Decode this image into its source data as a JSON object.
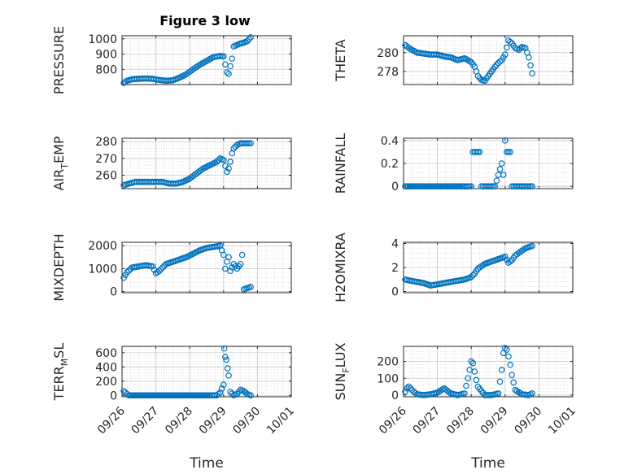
{
  "figure": {
    "title": "Figure 3 low"
  },
  "colors": {
    "marker": "#0072BD",
    "axis": "#262626",
    "grid": "#9a9a9a"
  },
  "chart_data": [
    {
      "type": "scatter",
      "id": "pressure",
      "ylabel": "PRESSURE",
      "ylabel_sub": "",
      "ylim": [
        700,
        1020
      ],
      "yticks": [
        800,
        900,
        1000
      ],
      "xlim": [
        0,
        5
      ],
      "xticks": [],
      "xlabel": "",
      "title": "Figure 3 low",
      "x": [
        0.05,
        0.15,
        0.3,
        0.5,
        0.7,
        0.9,
        1.1,
        1.3,
        1.5,
        1.7,
        1.9,
        2.1,
        2.3,
        2.5,
        2.7,
        2.9,
        3.0,
        3.1,
        3.15,
        3.2,
        3.25,
        3.3,
        3.4,
        3.5,
        3.6,
        3.7,
        3.8
      ],
      "y": [
        710,
        725,
        735,
        738,
        740,
        738,
        730,
        725,
        728,
        745,
        768,
        800,
        830,
        855,
        880,
        888,
        885,
        780,
        770,
        820,
        870,
        950,
        960,
        970,
        975,
        985,
        1010
      ]
    },
    {
      "type": "scatter",
      "id": "theta",
      "ylabel": "THETA",
      "ylabel_sub": "",
      "ylim": [
        276.6,
        281.8
      ],
      "yticks": [
        278,
        280
      ],
      "xlim": [
        0,
        5
      ],
      "xticks": [],
      "xlabel": "",
      "x": [
        0.05,
        0.2,
        0.4,
        0.6,
        0.8,
        1.0,
        1.2,
        1.4,
        1.6,
        1.8,
        2.0,
        2.1,
        2.2,
        2.3,
        2.4,
        2.5,
        2.6,
        2.7,
        2.8,
        2.9,
        3.0,
        3.1,
        3.2,
        3.3,
        3.4,
        3.5,
        3.6,
        3.7,
        3.8
      ],
      "y": [
        280.8,
        280.4,
        280.0,
        279.9,
        279.8,
        279.8,
        279.6,
        279.5,
        279.2,
        279.4,
        279.0,
        278.5,
        277.5,
        277.1,
        277.0,
        277.5,
        278.0,
        278.5,
        278.9,
        279.2,
        279.8,
        281.3,
        281.0,
        280.5,
        280.3,
        280.6,
        280.5,
        279.5,
        277.8
      ]
    },
    {
      "type": "scatter",
      "id": "air_temp",
      "ylabel": "AIR",
      "ylabel_sub": "T",
      "ylabel_tail": "EMP",
      "ylim": [
        252,
        282
      ],
      "yticks": [
        260,
        270,
        280
      ],
      "xlim": [
        0,
        5
      ],
      "xticks": [],
      "xlabel": "",
      "x": [
        0.05,
        0.2,
        0.4,
        0.6,
        0.8,
        1.0,
        1.2,
        1.4,
        1.6,
        1.8,
        2.0,
        2.2,
        2.4,
        2.6,
        2.8,
        2.9,
        3.0,
        3.1,
        3.15,
        3.2,
        3.25,
        3.3,
        3.4,
        3.5,
        3.6,
        3.7,
        3.8
      ],
      "y": [
        254,
        255,
        256,
        256,
        256,
        256,
        256,
        255,
        255,
        256,
        258,
        261,
        264,
        266,
        268,
        270,
        269,
        262,
        264,
        268,
        273,
        276,
        278,
        279,
        279,
        279,
        279
      ]
    },
    {
      "type": "scatter",
      "id": "rainfall",
      "ylabel": "RAINFALL",
      "ylabel_sub": "",
      "ylim": [
        -0.02,
        0.42
      ],
      "yticks": [
        0,
        0.2,
        0.4
      ],
      "xlim": [
        0,
        5
      ],
      "xticks": [],
      "xlabel": "",
      "x": [
        0.05,
        0.3,
        0.6,
        0.9,
        1.2,
        1.5,
        1.8,
        2.0,
        2.05,
        2.1,
        2.2,
        2.25,
        2.3,
        2.5,
        2.7,
        2.9,
        2.95,
        3.0,
        3.05,
        3.1,
        3.15,
        3.2,
        3.3,
        3.5,
        3.7,
        3.8
      ],
      "y": [
        0,
        0,
        0,
        0,
        0,
        0,
        0,
        0,
        0.3,
        0.3,
        0.3,
        0.3,
        0,
        0,
        0,
        0.2,
        0.1,
        0.4,
        0.3,
        0.3,
        0.3,
        0,
        0,
        0,
        0,
        0
      ]
    },
    {
      "type": "scatter",
      "id": "mixdepth",
      "ylabel": "MIXDEPTH",
      "ylabel_sub": "",
      "ylim": [
        -50,
        2150
      ],
      "yticks": [
        0,
        1000,
        2000
      ],
      "xlim": [
        0,
        5
      ],
      "xticks": [],
      "xlabel": "",
      "x": [
        0.05,
        0.15,
        0.3,
        0.5,
        0.7,
        0.9,
        1.0,
        1.1,
        1.3,
        1.5,
        1.7,
        1.9,
        2.1,
        2.3,
        2.5,
        2.7,
        2.9,
        3.0,
        3.05,
        3.1,
        3.15,
        3.2,
        3.3,
        3.4,
        3.5,
        3.55,
        3.6,
        3.7,
        3.8
      ],
      "y": [
        600,
        850,
        1050,
        1100,
        1150,
        1100,
        800,
        900,
        1200,
        1300,
        1400,
        1500,
        1650,
        1800,
        1900,
        1950,
        2000,
        1600,
        1000,
        1300,
        1500,
        900,
        1200,
        1000,
        1200,
        1600,
        100,
        150,
        200
      ]
    },
    {
      "type": "scatter",
      "id": "h2omixra",
      "ylabel": "H2OMIXRA",
      "ylabel_sub": "",
      "ylim": [
        -0.1,
        4.1
      ],
      "yticks": [
        0,
        2,
        4
      ],
      "xlim": [
        0,
        5
      ],
      "xticks": [],
      "xlabel": "",
      "x": [
        0.05,
        0.2,
        0.4,
        0.6,
        0.8,
        1.0,
        1.2,
        1.4,
        1.6,
        1.8,
        2.0,
        2.1,
        2.2,
        2.3,
        2.4,
        2.5,
        2.6,
        2.7,
        2.8,
        2.9,
        3.0,
        3.1,
        3.2,
        3.3,
        3.4,
        3.5,
        3.6,
        3.7,
        3.8
      ],
      "y": [
        1.0,
        0.9,
        0.8,
        0.7,
        0.5,
        0.6,
        0.7,
        0.8,
        0.9,
        1.0,
        1.2,
        1.5,
        1.9,
        2.1,
        2.3,
        2.4,
        2.5,
        2.6,
        2.7,
        2.8,
        2.9,
        2.4,
        2.6,
        3.0,
        3.2,
        3.4,
        3.6,
        3.7,
        3.8
      ]
    },
    {
      "type": "scatter",
      "id": "terr_msl",
      "ylabel": "TERR",
      "ylabel_sub": "M",
      "ylabel_tail": "SL",
      "ylim": [
        -20,
        690
      ],
      "yticks": [
        0,
        200,
        400,
        600
      ],
      "xlim": [
        0,
        5
      ],
      "xticks": [
        "09/26",
        "09/27",
        "09/28",
        "09/29",
        "09/30",
        "10/01"
      ],
      "xlabel": "Time",
      "x": [
        0.05,
        0.2,
        0.5,
        0.8,
        1.1,
        1.4,
        1.7,
        2.0,
        2.3,
        2.6,
        2.8,
        2.9,
        3.0,
        3.02,
        3.05,
        3.08,
        3.12,
        3.15,
        3.2,
        3.3,
        3.4,
        3.5,
        3.6,
        3.7,
        3.8
      ],
      "y": [
        60,
        0,
        0,
        0,
        0,
        0,
        0,
        0,
        0,
        0,
        0,
        40,
        150,
        660,
        540,
        500,
        380,
        280,
        50,
        0,
        20,
        80,
        60,
        20,
        0
      ]
    },
    {
      "type": "scatter",
      "id": "sunflux",
      "ylabel": "SUN",
      "ylabel_sub": "F",
      "ylabel_tail": "LUX",
      "ylim": [
        -10,
        290
      ],
      "yticks": [
        0,
        100,
        200
      ],
      "xlim": [
        0,
        5
      ],
      "xticks": [
        "09/26",
        "09/27",
        "09/28",
        "09/29",
        "09/30",
        "10/01"
      ],
      "xlabel": "Time",
      "x": [
        0.05,
        0.1,
        0.15,
        0.2,
        0.3,
        0.4,
        0.6,
        0.8,
        1.0,
        1.2,
        1.4,
        1.6,
        1.8,
        1.9,
        1.95,
        2.0,
        2.05,
        2.1,
        2.15,
        2.2,
        2.4,
        2.6,
        2.8,
        2.85,
        2.9,
        2.95,
        3.0,
        3.05,
        3.1,
        3.15,
        3.2,
        3.3,
        3.5,
        3.7,
        3.8
      ],
      "y": [
        20,
        40,
        50,
        40,
        20,
        5,
        0,
        5,
        15,
        40,
        10,
        0,
        10,
        100,
        150,
        200,
        190,
        140,
        90,
        50,
        0,
        0,
        10,
        80,
        150,
        250,
        280,
        270,
        230,
        180,
        120,
        30,
        5,
        0,
        10
      ]
    }
  ]
}
